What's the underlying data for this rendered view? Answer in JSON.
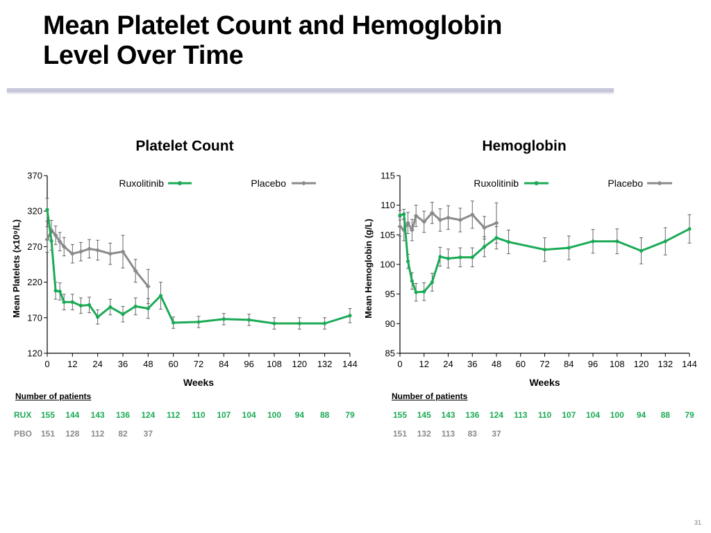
{
  "slide": {
    "title_line1": "Mean Platelet Count  and Hemoglobin",
    "title_line2": "Level Over Time",
    "page_number": "31"
  },
  "colors": {
    "ruxolitinib": "#1aaa55",
    "placebo": "#8a8a8a",
    "title_rule": "#c7c7dc"
  },
  "chart_data": [
    {
      "type": "line",
      "title": "Platelet Count",
      "xlabel": "Weeks",
      "ylabel": "Mean Platelets (x10⁹/L)",
      "xlim": [
        0,
        144
      ],
      "ylim": [
        120,
        370
      ],
      "xticks": [
        0,
        12,
        24,
        36,
        48,
        60,
        72,
        84,
        96,
        108,
        120,
        132,
        144
      ],
      "yticks": [
        120,
        170,
        220,
        270,
        320,
        370
      ],
      "legend": "top",
      "grid": false,
      "series": [
        {
          "name": "Ruxolitinib",
          "color": "#1aaa55",
          "marker": "circle",
          "points": [
            {
              "x": 0,
              "y": 322,
              "err": 16
            },
            {
              "x": 2,
              "y": 278,
              "err": 13
            },
            {
              "x": 4,
              "y": 208,
              "err": 12
            },
            {
              "x": 6,
              "y": 207,
              "err": 12
            },
            {
              "x": 8,
              "y": 192,
              "err": 11
            },
            {
              "x": 12,
              "y": 192,
              "err": 11
            },
            {
              "x": 16,
              "y": 187,
              "err": 11
            },
            {
              "x": 20,
              "y": 188,
              "err": 11
            },
            {
              "x": 24,
              "y": 171,
              "err": 10
            },
            {
              "x": 30,
              "y": 185,
              "err": 11
            },
            {
              "x": 36,
              "y": 175,
              "err": 11
            },
            {
              "x": 42,
              "y": 186,
              "err": 12
            },
            {
              "x": 48,
              "y": 183,
              "err": 14
            },
            {
              "x": 54,
              "y": 201,
              "err": 19
            },
            {
              "x": 60,
              "y": 163,
              "err": 8
            },
            {
              "x": 72,
              "y": 164,
              "err": 8
            },
            {
              "x": 84,
              "y": 168,
              "err": 8
            },
            {
              "x": 96,
              "y": 167,
              "err": 8
            },
            {
              "x": 108,
              "y": 162,
              "err": 8
            },
            {
              "x": 120,
              "y": 162,
              "err": 8
            },
            {
              "x": 132,
              "y": 162,
              "err": 8
            },
            {
              "x": 144,
              "y": 173,
              "err": 10
            }
          ]
        },
        {
          "name": "Placebo",
          "color": "#8a8a8a",
          "marker": "diamond",
          "points": [
            {
              "x": 0,
              "y": 280,
              "err": 18
            },
            {
              "x": 2,
              "y": 293,
              "err": 14
            },
            {
              "x": 4,
              "y": 286,
              "err": 13
            },
            {
              "x": 6,
              "y": 277,
              "err": 13
            },
            {
              "x": 8,
              "y": 270,
              "err": 13
            },
            {
              "x": 12,
              "y": 260,
              "err": 13
            },
            {
              "x": 16,
              "y": 263,
              "err": 13
            },
            {
              "x": 20,
              "y": 267,
              "err": 13
            },
            {
              "x": 24,
              "y": 265,
              "err": 14
            },
            {
              "x": 30,
              "y": 260,
              "err": 15
            },
            {
              "x": 36,
              "y": 263,
              "err": 23
            },
            {
              "x": 42,
              "y": 236,
              "err": 16
            },
            {
              "x": 48,
              "y": 214,
              "err": 24
            }
          ]
        }
      ],
      "patients": {
        "header": "Number of patients",
        "rows": [
          {
            "label": "RUX",
            "values": [
              "155",
              "144",
              "143",
              "136",
              "124",
              "112",
              "110",
              "107",
              "104",
              "100",
              "94",
              "88",
              "79"
            ]
          },
          {
            "label": "PBO",
            "values": [
              "151",
              "128",
              "112",
              "82",
              "37"
            ]
          }
        ]
      }
    },
    {
      "type": "line",
      "title": "Hemoglobin",
      "xlabel": "Weeks",
      "ylabel": "Mean Hemoglobin (g/L)",
      "xlim": [
        0,
        144
      ],
      "ylim": [
        85,
        115
      ],
      "xticks": [
        0,
        12,
        24,
        36,
        48,
        60,
        72,
        84,
        96,
        108,
        120,
        132,
        144
      ],
      "yticks": [
        85,
        90,
        95,
        100,
        105,
        110,
        115
      ],
      "legend": "top",
      "grid": false,
      "series": [
        {
          "name": "Ruxolitinib",
          "color": "#1aaa55",
          "marker": "circle",
          "points": [
            {
              "x": 0,
              "y": 108.3,
              "err": 0.8
            },
            {
              "x": 2,
              "y": 108.5,
              "err": 0.8
            },
            {
              "x": 4,
              "y": 100.5,
              "err": 1.2
            },
            {
              "x": 6,
              "y": 97.2,
              "err": 1.4
            },
            {
              "x": 8,
              "y": 95.3,
              "err": 1.5
            },
            {
              "x": 12,
              "y": 95.4,
              "err": 1.5
            },
            {
              "x": 16,
              "y": 97.0,
              "err": 1.5
            },
            {
              "x": 20,
              "y": 101.3,
              "err": 1.6
            },
            {
              "x": 24,
              "y": 101.0,
              "err": 1.6
            },
            {
              "x": 30,
              "y": 101.2,
              "err": 1.6
            },
            {
              "x": 36,
              "y": 101.2,
              "err": 1.6
            },
            {
              "x": 42,
              "y": 103.0,
              "err": 1.7
            },
            {
              "x": 48,
              "y": 104.5,
              "err": 1.9
            },
            {
              "x": 54,
              "y": 103.8,
              "err": 2.0
            },
            {
              "x": 72,
              "y": 102.5,
              "err": 2.0
            },
            {
              "x": 84,
              "y": 102.8,
              "err": 2.0
            },
            {
              "x": 96,
              "y": 103.9,
              "err": 2.0
            },
            {
              "x": 108,
              "y": 103.9,
              "err": 2.1
            },
            {
              "x": 120,
              "y": 102.3,
              "err": 2.2
            },
            {
              "x": 132,
              "y": 103.9,
              "err": 2.3
            },
            {
              "x": 144,
              "y": 106.0,
              "err": 2.4
            }
          ]
        },
        {
          "name": "Placebo",
          "color": "#8a8a8a",
          "marker": "diamond",
          "points": [
            {
              "x": 0,
              "y": 106.4,
              "err": 1.6
            },
            {
              "x": 2,
              "y": 105.8,
              "err": 1.8
            },
            {
              "x": 4,
              "y": 107.0,
              "err": 1.8
            },
            {
              "x": 6,
              "y": 105.8,
              "err": 1.8
            },
            {
              "x": 8,
              "y": 108.2,
              "err": 1.8
            },
            {
              "x": 12,
              "y": 107.2,
              "err": 1.8
            },
            {
              "x": 16,
              "y": 108.7,
              "err": 1.8
            },
            {
              "x": 20,
              "y": 107.5,
              "err": 1.9
            },
            {
              "x": 24,
              "y": 107.9,
              "err": 2.0
            },
            {
              "x": 30,
              "y": 107.5,
              "err": 2.0
            },
            {
              "x": 36,
              "y": 108.4,
              "err": 2.3
            },
            {
              "x": 42,
              "y": 106.2,
              "err": 1.9
            },
            {
              "x": 48,
              "y": 107.0,
              "err": 3.4
            }
          ]
        }
      ],
      "patients": {
        "header": "Number of patients",
        "rows": [
          {
            "label": "",
            "values": [
              "155",
              "145",
              "143",
              "136",
              "124",
              "113",
              "110",
              "107",
              "104",
              "100",
              "94",
              "88",
              "79"
            ]
          },
          {
            "label": "",
            "values": [
              "151",
              "132",
              "113",
              "83",
              "37"
            ]
          }
        ]
      }
    }
  ]
}
